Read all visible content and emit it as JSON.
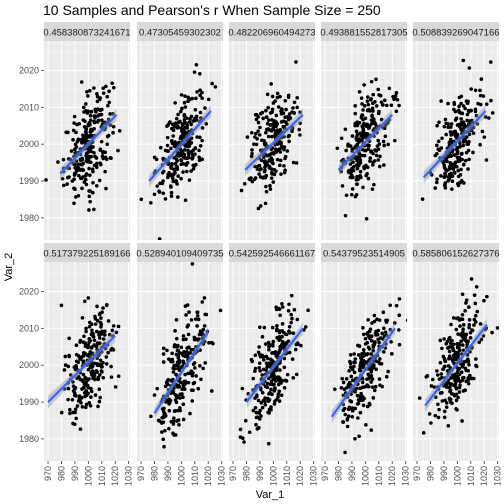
{
  "chart_data": {
    "type": "scatter",
    "title": "10 Samples and Pearson's r When Sample Size =  250",
    "xlabel": "Var_1",
    "ylabel": "Var_2",
    "xlim": [
      967,
      1031
    ],
    "ylim": [
      1974,
      2028
    ],
    "x_ticks": [
      970,
      980,
      990,
      1000,
      1010,
      1020,
      1030
    ],
    "y_ticks": [
      1980,
      1990,
      2000,
      2010,
      2020
    ],
    "grid": true,
    "n_points_per_panel": 250,
    "panels": [
      {
        "label": "0.458380873241671",
        "fit": {
          "x0": 979,
          "y0": 1992,
          "x1": 1021,
          "y1": 2008
        }
      },
      {
        "label": "0.47305459302302",
        "fit": {
          "x0": 976,
          "y0": 1990,
          "x1": 1022,
          "y1": 2009
        }
      },
      {
        "label": "0.482206960494273",
        "fit": {
          "x0": 979,
          "y0": 1993,
          "x1": 1022,
          "y1": 2008
        }
      },
      {
        "label": "0.493881552817305",
        "fit": {
          "x0": 980,
          "y0": 1993,
          "x1": 1020,
          "y1": 2008
        }
      },
      {
        "label": "0.508839269047166",
        "fit": {
          "x0": 975,
          "y0": 1991,
          "x1": 1021,
          "y1": 2009
        }
      },
      {
        "label": "0.517379225189166",
        "fit": {
          "x0": 970,
          "y0": 1990,
          "x1": 1020,
          "y1": 2008
        }
      },
      {
        "label": "0.528940109409735",
        "fit": {
          "x0": 980,
          "y0": 1987,
          "x1": 1020,
          "y1": 2009
        }
      },
      {
        "label": "0.542592546661167",
        "fit": {
          "x0": 980,
          "y0": 1990,
          "x1": 1022,
          "y1": 2010
        }
      },
      {
        "label": "0.54379523514905",
        "fit": {
          "x0": 975,
          "y0": 1986,
          "x1": 1022,
          "y1": 2010
        }
      },
      {
        "label": "0.585806152627376",
        "fit": {
          "x0": 976,
          "y0": 1989,
          "x1": 1022,
          "y1": 2011
        }
      }
    ],
    "colors": {
      "points": "#000000",
      "fit_line": "#3366ff",
      "confidence_band": "#999999",
      "panel_background": "#ebebeb",
      "strip_background": "#d9d9d9",
      "grid": "#ffffff"
    }
  }
}
